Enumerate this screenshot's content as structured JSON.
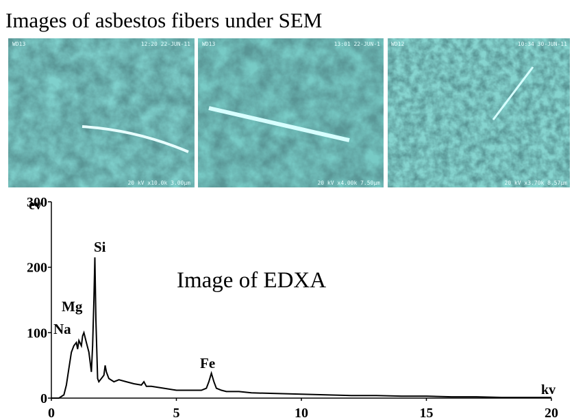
{
  "header": {
    "title": "Images of asbestos fibers under SEM"
  },
  "images": [
    {
      "top_left": "WD13",
      "top_right": "12:20 22-JUN-11",
      "bottom": "20 kV x10.0k 3.00µm"
    },
    {
      "top_left": "WD13",
      "top_right": "13:01 22-JUN-1",
      "bottom": "20 kV x4.00k 7.50µm"
    },
    {
      "top_left": "WD12",
      "top_right": "10:34 30-JUN-11",
      "bottom": "20 kV x3.70k 8.57µm"
    }
  ],
  "chart_data": {
    "type": "line",
    "title": "Image of EDXA",
    "x_label": "kv",
    "y_label": "ev",
    "annotations": [
      "Na",
      "Mg",
      "Si",
      "Fe"
    ],
    "x": [
      0,
      0.3,
      0.5,
      0.6,
      0.7,
      0.8,
      0.9,
      1.0,
      1.05,
      1.1,
      1.2,
      1.25,
      1.3,
      1.4,
      1.5,
      1.55,
      1.6,
      1.65,
      1.7,
      1.74,
      1.78,
      1.85,
      1.9,
      2.0,
      2.1,
      2.15,
      2.2,
      2.3,
      2.5,
      2.7,
      3.0,
      3.3,
      3.6,
      3.7,
      3.8,
      4.0,
      4.5,
      5.0,
      5.5,
      6.0,
      6.2,
      6.3,
      6.4,
      6.5,
      6.6,
      6.8,
      7.0,
      7.5,
      8.0,
      9.0,
      10,
      11,
      12,
      13,
      14,
      15,
      16,
      17,
      18,
      19,
      20
    ],
    "values": [
      0,
      0,
      5,
      20,
      45,
      70,
      80,
      85,
      75,
      88,
      80,
      95,
      100,
      85,
      70,
      55,
      40,
      80,
      150,
      215,
      120,
      30,
      25,
      30,
      35,
      50,
      40,
      30,
      25,
      28,
      25,
      22,
      20,
      25,
      18,
      18,
      15,
      12,
      12,
      12,
      15,
      25,
      38,
      25,
      15,
      12,
      10,
      10,
      8,
      7,
      6,
      5,
      4,
      4,
      3,
      3,
      2,
      2,
      1,
      1,
      1
    ],
    "color": "#000000",
    "xlim": [
      0,
      20
    ],
    "ylim": [
      0,
      300
    ],
    "xticks": [
      0,
      5,
      10,
      15,
      20
    ],
    "yticks": [
      0,
      100,
      200,
      300
    ]
  }
}
